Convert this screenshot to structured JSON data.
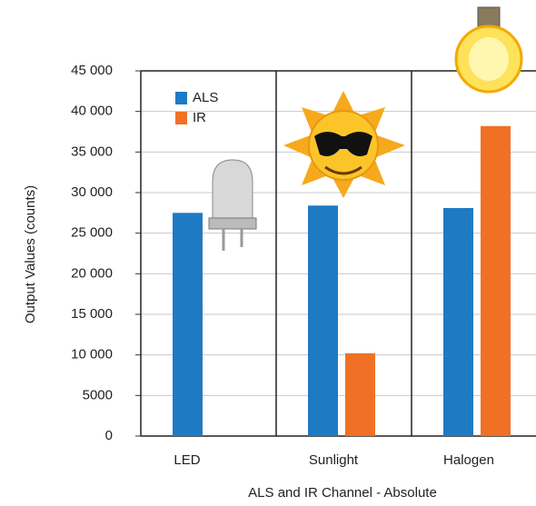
{
  "chart_data": {
    "type": "bar",
    "x_label": "ALS and IR Channel - Absolute",
    "y_label": "Output Values (counts)",
    "categories": [
      "LED",
      "Sunlight",
      "Halogen"
    ],
    "series": [
      {
        "name": "ALS",
        "color": "#1f7ac4",
        "values": [
          27500,
          28400,
          28100
        ]
      },
      {
        "name": "IR",
        "color": "#f07125",
        "values": [
          0,
          10200,
          38200
        ]
      }
    ],
    "ylim": [
      0,
      45000
    ],
    "yticks": [
      0,
      5000,
      {
        "value": 10000,
        "label": "10 000"
      },
      {
        "value": 15000,
        "label": "15 000"
      },
      {
        "value": 20000,
        "label": "20 000"
      },
      {
        "value": 25000,
        "label": "25 000"
      },
      {
        "value": 30000,
        "label": "30 000"
      },
      {
        "value": 35000,
        "label": "35 000"
      },
      {
        "value": 40000,
        "label": "40 000"
      },
      {
        "value": 45000,
        "label": "45 000"
      }
    ],
    "grid": true
  }
}
